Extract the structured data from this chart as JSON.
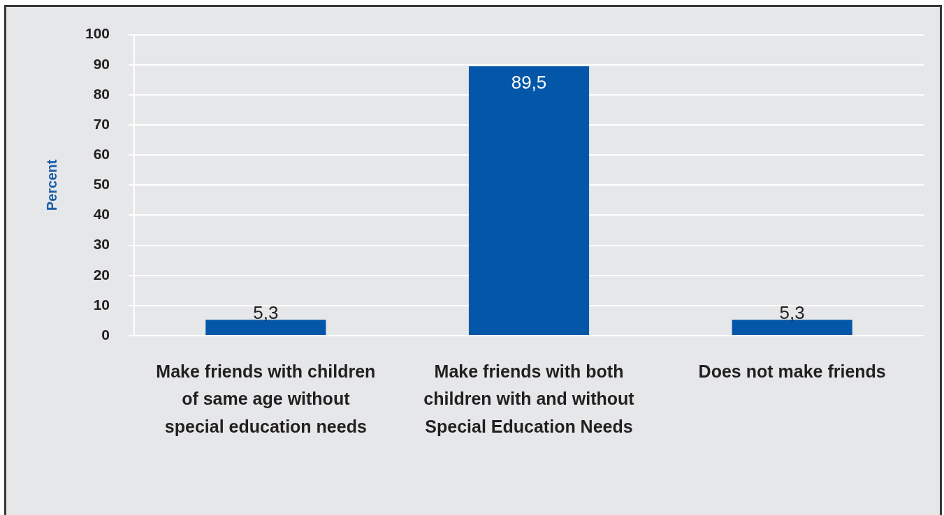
{
  "chart_data": {
    "type": "bar",
    "ylabel": "Percent",
    "categories": [
      "Make friends with children of same age without special education needs",
      "Make friends with both children with and without Special Education Needs",
      "Does not make friends"
    ],
    "values": [
      5.3,
      89.5,
      5.3
    ],
    "color": "#0457a8",
    "value_labels": [
      "5,3",
      "89,5",
      "5,3"
    ],
    "ylim": [
      0,
      100
    ],
    "yticks": [
      0,
      10,
      20,
      30,
      40,
      50,
      60,
      70,
      80,
      90,
      100
    ],
    "grid": "y"
  }
}
